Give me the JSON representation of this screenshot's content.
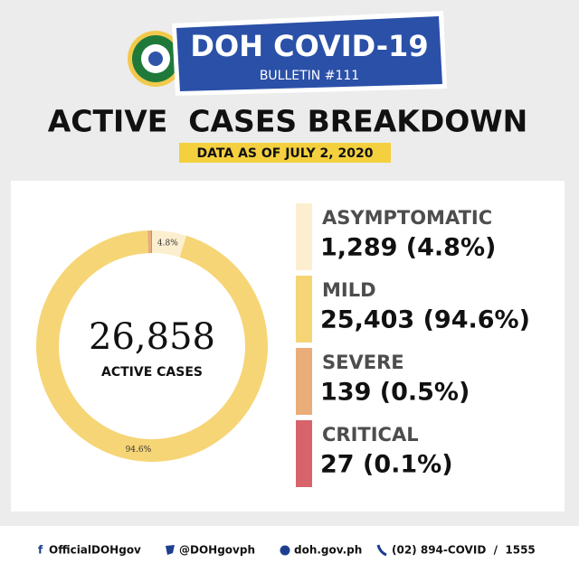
{
  "header": {
    "title": "DOH COVID-19",
    "subtitle": "BULLETIN #111",
    "heading": "ACTIVE  CASES BREAKDOWN",
    "date": "DATA AS OF JULY 2, 2020"
  },
  "chart_data": {
    "type": "donut",
    "categories": [
      "ASYMPTOMATIC",
      "MILD",
      "SEVERE",
      "CRITICAL"
    ],
    "values": [
      1289,
      25403,
      139,
      27
    ],
    "value_labels": [
      "1,289 (4.8%)",
      "25,403 (94.6%)",
      "139 (0.5%)",
      "27 (0.1%)"
    ],
    "colors": [
      "#fcefcf",
      "#f6d576",
      "#e8ad78",
      "#d7646a"
    ],
    "slice_labels": [
      "4.8%",
      "94.6%",
      null,
      null
    ],
    "total": {
      "value": 26858,
      "label": "26,858"
    },
    "total_label": "ACTIVE CASES"
  },
  "footer": {
    "facebook": "OfficialDOHgov",
    "twitter": "@DOHgovph",
    "website": "doh.gov.ph",
    "phone": "(02) 894-COVID  /  1555"
  }
}
